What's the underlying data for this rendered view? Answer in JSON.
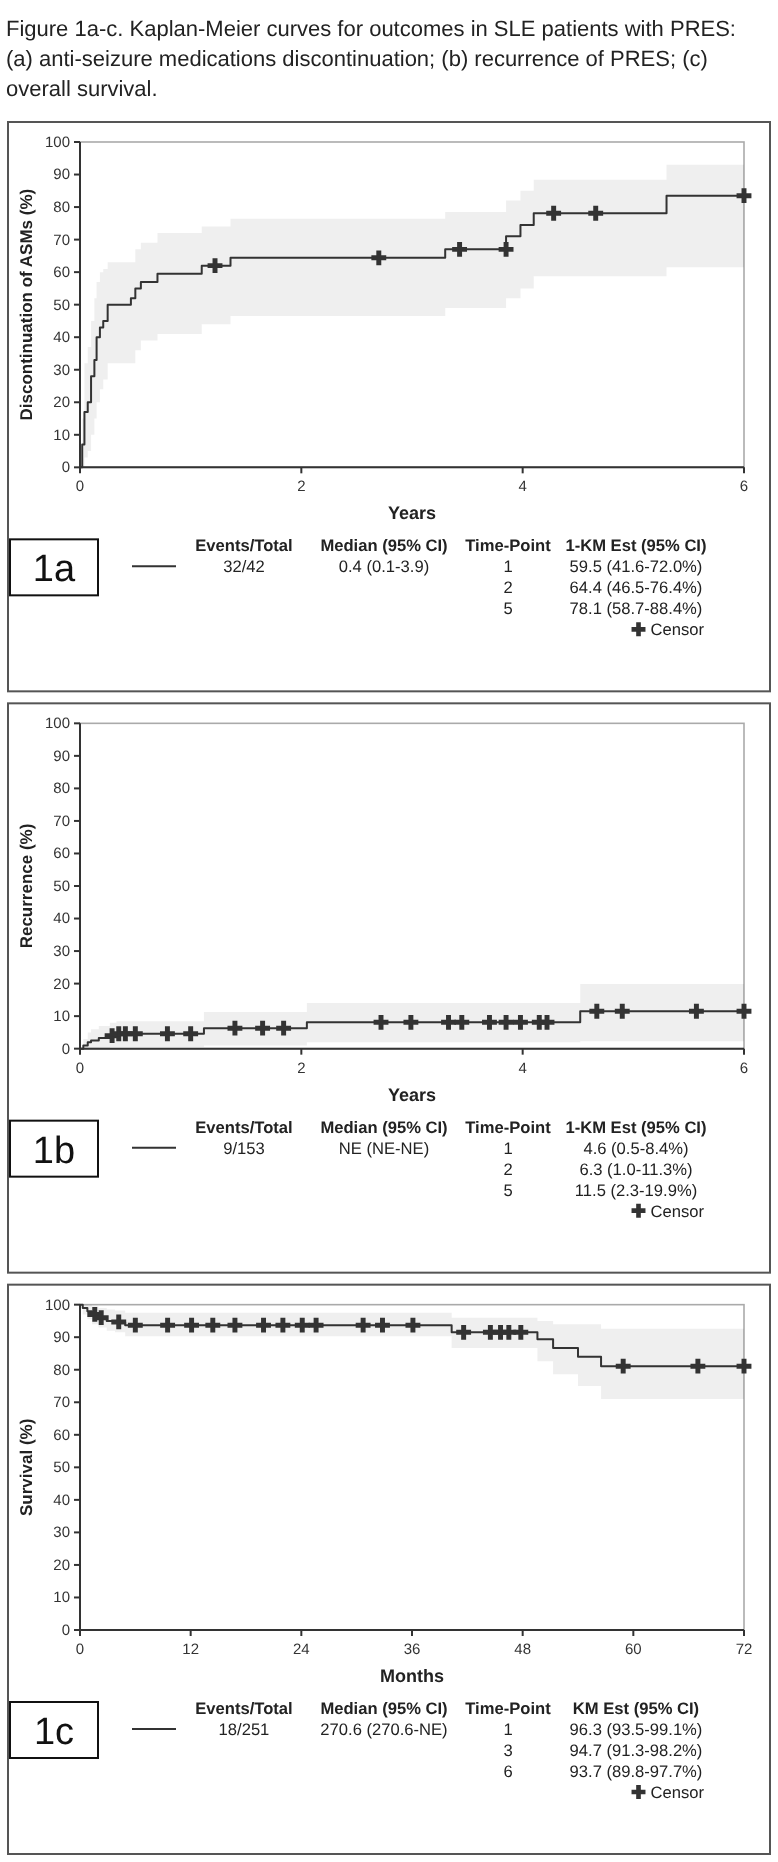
{
  "chart_data": [
    {
      "type": "step",
      "title": "Figure 1a-c. Kaplan-Meier curves for outcomes in SLE patients with PRES: (a) anti-seizure medications discontinuation; (b) recurrence of PRES; (c) overall survival.",
      "xlabel": "Years",
      "ylabel": "Discontinuation of ASMs (%)",
      "xlim": [
        0,
        6
      ],
      "ylim": [
        0,
        100
      ],
      "xticks": [
        0,
        2,
        4,
        6
      ],
      "yticks": [
        0,
        10,
        20,
        30,
        40,
        50,
        60,
        70,
        80,
        90,
        100
      ],
      "legend": "bottom",
      "series": [
        {
          "color": "#333333",
          "x": [
            0,
            0.02,
            0.04,
            0.07,
            0.1,
            0.13,
            0.15,
            0.18,
            0.21,
            0.25,
            0.46,
            0.5,
            0.55,
            0.7,
            1.1,
            1.36,
            3.3,
            3.85,
            3.98,
            4.1,
            5.3,
            6
          ],
          "values": [
            0,
            7,
            17,
            20,
            28,
            33,
            40,
            43,
            45,
            50,
            52,
            55,
            57,
            59.5,
            62,
            64.4,
            67,
            71,
            74.5,
            78.1,
            83.5,
            83.5
          ],
          "lower": [
            0,
            0,
            3,
            5,
            10,
            15,
            20,
            24,
            27,
            32,
            32,
            36,
            39,
            41,
            44,
            46.5,
            49,
            52,
            55,
            58.7,
            61.5,
            61.5
          ],
          "upper": [
            0,
            15,
            32,
            37,
            45,
            52,
            57,
            60,
            61,
            63,
            63,
            67,
            69,
            72,
            74,
            76.4,
            78.5,
            82,
            85,
            88.4,
            93,
            93
          ]
        },
        {
          "type": "scatter",
          "name": "Censor",
          "marker": "cross",
          "color": "#333333",
          "x": [
            1.22,
            2.7,
            3.43,
            3.85,
            4.28,
            4.66,
            6
          ],
          "values": [
            62,
            64.4,
            67,
            67,
            78.1,
            78.1,
            83.5
          ]
        }
      ],
      "annotations": [
        "1a",
        "Events/Total",
        "Median (95% CI)",
        "Time-Point",
        "1-KM Est (95% CI)",
        "32/42",
        "0.4 (0.1-3.9)",
        "1",
        "59.5 (41.6-72.0%)",
        "2",
        "64.4 (46.5-76.4%)",
        "5",
        "78.1 (58.7-88.4%)"
      ]
    },
    {
      "type": "step",
      "xlabel": "Years",
      "ylabel": "Recurrence (%)",
      "xlim": [
        0,
        6
      ],
      "ylim": [
        0,
        100
      ],
      "xticks": [
        0,
        2,
        4,
        6
      ],
      "yticks": [
        0,
        10,
        20,
        30,
        40,
        50,
        60,
        70,
        80,
        90,
        100
      ],
      "legend": "bottom",
      "series": [
        {
          "color": "#333333",
          "x": [
            0,
            0.03,
            0.07,
            0.1,
            0.17,
            0.27,
            0.33,
            1.12,
            2.05,
            4.52,
            6
          ],
          "values": [
            0,
            1,
            2,
            2.5,
            3.3,
            4,
            4.6,
            6.3,
            8.1,
            11.5,
            11.5
          ],
          "lower": [
            0,
            0,
            0,
            0,
            0.3,
            0.5,
            0.5,
            1,
            2,
            2.3,
            2.3
          ],
          "upper": [
            0,
            3,
            5,
            6,
            7,
            8,
            8.4,
            11.3,
            14,
            19.9,
            19.9
          ]
        },
        {
          "type": "scatter",
          "name": "Censor",
          "marker": "cross",
          "color": "#333333",
          "x": [
            0.29,
            0.35,
            0.41,
            0.5,
            0.79,
            1,
            1.4,
            1.65,
            1.84,
            2.72,
            2.99,
            3.33,
            3.45,
            3.7,
            3.85,
            3.98,
            4.15,
            4.22,
            4.67,
            4.9,
            5.57,
            6
          ],
          "values": [
            4,
            4.6,
            4.6,
            4.6,
            4.6,
            4.6,
            6.3,
            6.3,
            6.3,
            8.1,
            8.1,
            8.1,
            8.1,
            8.1,
            8.1,
            8.1,
            8.1,
            8.1,
            11.5,
            11.5,
            11.5,
            11.5
          ]
        }
      ],
      "annotations": [
        "1b",
        "Events/Total",
        "Median (95% CI)",
        "Time-Point",
        "1-KM Est (95% CI)",
        "9/153",
        "NE (NE-NE)",
        "1",
        "4.6 (0.5-8.4%)",
        "2",
        "6.3 (1.0-11.3%)",
        "5",
        "11.5 (2.3-19.9%)"
      ]
    },
    {
      "type": "step",
      "xlabel": "Months",
      "ylabel": "Survival (%)",
      "xlim": [
        0,
        72
      ],
      "ylim": [
        0,
        100
      ],
      "xticks": [
        0,
        12,
        24,
        36,
        48,
        60,
        72
      ],
      "yticks": [
        0,
        10,
        20,
        30,
        40,
        50,
        60,
        70,
        80,
        90,
        100
      ],
      "legend": "bottom",
      "series": [
        {
          "color": "#333333",
          "x": [
            0,
            0.3,
            0.8,
            1.3,
            2,
            2.9,
            3.8,
            4.9,
            40.3,
            49.6,
            51.3,
            54,
            56.5,
            72
          ],
          "values": [
            100,
            99,
            98,
            97,
            96,
            95,
            94.7,
            93.7,
            91.5,
            89.4,
            86.7,
            84,
            81.1,
            81.1
          ],
          "lower": [
            100,
            97,
            95.5,
            94,
            93,
            92,
            91.5,
            90.3,
            86.7,
            82.6,
            78.6,
            75,
            71,
            71
          ],
          "upper": [
            100,
            100,
            100,
            99.5,
            99,
            98.5,
            98.2,
            97.5,
            96,
            95,
            94,
            94,
            92.6,
            92.6
          ]
        },
        {
          "type": "scatter",
          "name": "Censor",
          "marker": "cross",
          "color": "#333333",
          "x": [
            1.6,
            2.3,
            4.2,
            6,
            9.5,
            12.1,
            14.4,
            16.8,
            19.9,
            22,
            24.1,
            25.6,
            30.7,
            32.8,
            36.1,
            41.6,
            44.5,
            45.6,
            46.5,
            47.8,
            58.9,
            67,
            72
          ],
          "values": [
            97,
            96,
            94.7,
            93.7,
            93.7,
            93.7,
            93.7,
            93.7,
            93.7,
            93.7,
            93.7,
            93.7,
            93.7,
            93.7,
            93.7,
            91.5,
            91.5,
            91.5,
            91.5,
            91.5,
            81.1,
            81.1,
            81.1
          ]
        }
      ],
      "annotations": [
        "1c",
        "Events/Total",
        "Median (95% CI)",
        "Time-Point",
        "KM Est (95% CI)",
        "18/251",
        "270.6 (270.6-NE)",
        "1",
        "96.3 (93.5-99.1%)",
        "3",
        "94.7 (91.3-98.2%)",
        "6",
        "93.7 (89.8-97.7%)"
      ]
    }
  ]
}
